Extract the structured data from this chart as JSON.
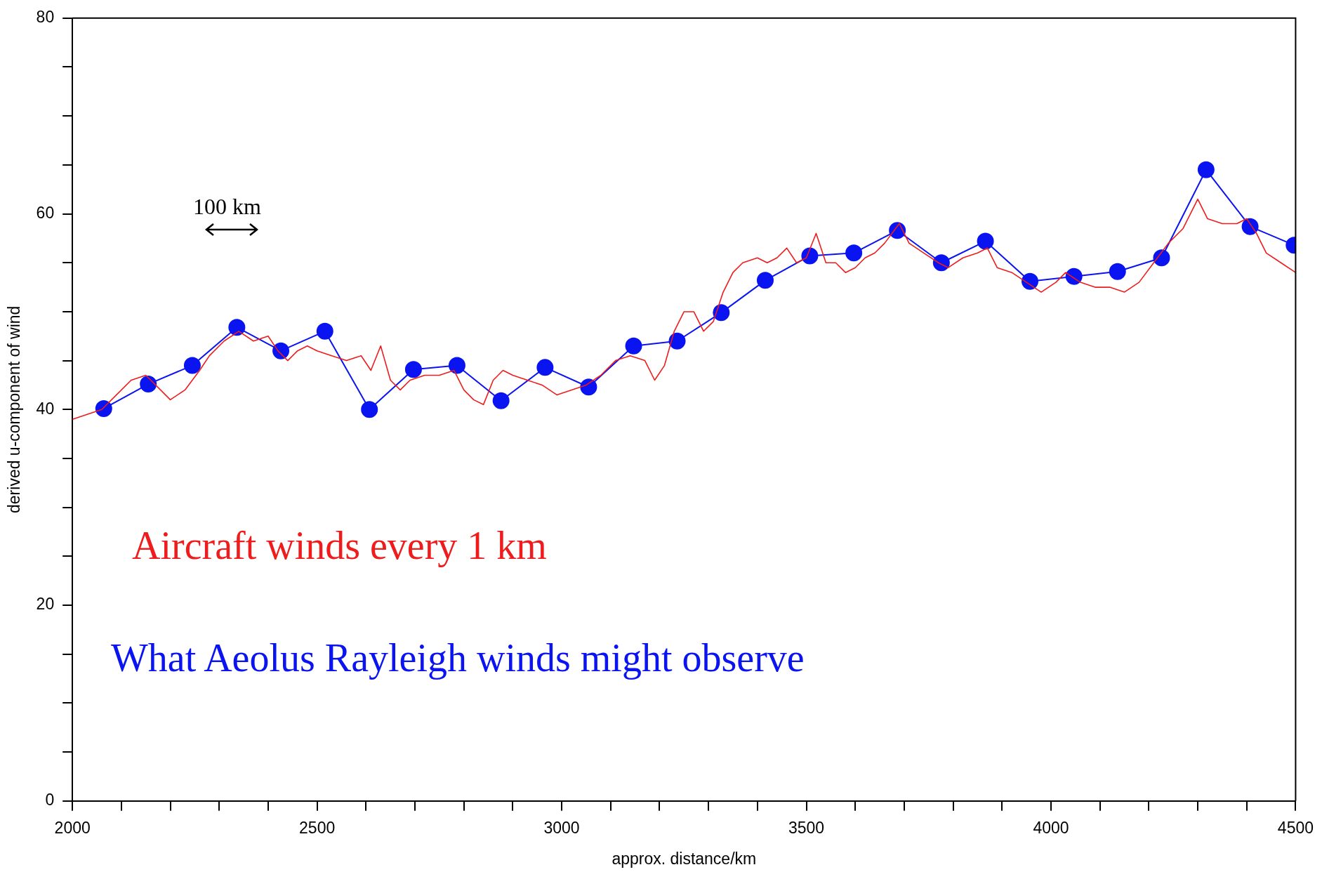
{
  "chart_data": {
    "type": "line",
    "xlabel": "approx. distance/km",
    "ylabel": "derived u-component of wind",
    "xlim": [
      2000,
      4500
    ],
    "ylim": [
      0,
      80
    ],
    "xticks": [
      2000,
      {
        "value": 2100,
        "label": null
      },
      {
        "value": 2200,
        "label": null
      },
      {
        "value": 2300,
        "label": null
      },
      {
        "value": 2400,
        "label": null
      },
      2500,
      {
        "value": 2600,
        "label": null
      },
      {
        "value": 2700,
        "label": null
      },
      {
        "value": 2800,
        "label": null
      },
      {
        "value": 2900,
        "label": null
      },
      3000,
      {
        "value": 3100,
        "label": null
      },
      {
        "value": 3200,
        "label": null
      },
      {
        "value": 3300,
        "label": null
      },
      {
        "value": 3400,
        "label": null
      },
      3500,
      {
        "value": 3600,
        "label": null
      },
      {
        "value": 3700,
        "label": null
      },
      {
        "value": 3800,
        "label": null
      },
      {
        "value": 3900,
        "label": null
      },
      4000,
      {
        "value": 4100,
        "label": null
      },
      {
        "value": 4200,
        "label": null
      },
      {
        "value": 4300,
        "label": null
      },
      {
        "value": 4400,
        "label": null
      },
      4500
    ],
    "yticks": [
      0,
      {
        "value": 5,
        "label": null
      },
      {
        "value": 10,
        "label": null
      },
      {
        "value": 15,
        "label": null
      },
      20,
      {
        "value": 25,
        "label": null
      },
      {
        "value": 30,
        "label": null
      },
      {
        "value": 35,
        "label": null
      },
      40,
      {
        "value": 45,
        "label": null
      },
      {
        "value": 50,
        "label": null
      },
      {
        "value": 55,
        "label": null
      },
      60,
      {
        "value": 65,
        "label": null
      },
      {
        "value": 70,
        "label": null
      },
      {
        "value": 75,
        "label": null
      },
      80
    ],
    "annotations": [
      "100 km"
    ],
    "series": [
      {
        "name": "Aircraft winds every 1 km",
        "color": "#ee1c1c",
        "marker": "none",
        "x": [
          2000,
          2030,
          2060,
          2090,
          2120,
          2150,
          2180,
          2200,
          2230,
          2260,
          2280,
          2310,
          2340,
          2370,
          2400,
          2420,
          2440,
          2460,
          2480,
          2500,
          2530,
          2560,
          2590,
          2610,
          2630,
          2650,
          2670,
          2690,
          2720,
          2750,
          2780,
          2800,
          2820,
          2840,
          2860,
          2880,
          2900,
          2930,
          2960,
          2990,
          3020,
          3050,
          3080,
          3110,
          3140,
          3170,
          3190,
          3210,
          3230,
          3250,
          3270,
          3290,
          3310,
          3330,
          3350,
          3370,
          3400,
          3420,
          3440,
          3460,
          3480,
          3500,
          3520,
          3540,
          3560,
          3580,
          3600,
          3620,
          3640,
          3660,
          3690,
          3710,
          3740,
          3770,
          3790,
          3820,
          3850,
          3870,
          3890,
          3920,
          3950,
          3980,
          4010,
          4030,
          4060,
          4090,
          4120,
          4150,
          4180,
          4210,
          4240,
          4270,
          4300,
          4320,
          4350,
          4380,
          4400,
          4420,
          4440,
          4470,
          4500
        ],
        "values": [
          39,
          39.5,
          40,
          41.5,
          43,
          43.5,
          42,
          41,
          42,
          44,
          45.5,
          47,
          48,
          47,
          47.5,
          46,
          45,
          46,
          46.5,
          46,
          45.5,
          45,
          45.5,
          44,
          46.5,
          43,
          42,
          43,
          43.5,
          43.5,
          44,
          42,
          41,
          40.5,
          43,
          44,
          43.5,
          43,
          42.5,
          41.5,
          42,
          42.5,
          43.5,
          45,
          45.5,
          45,
          43,
          44.5,
          48,
          50,
          50,
          48,
          49,
          52,
          54,
          55,
          55.5,
          55,
          55.5,
          56.5,
          55,
          55.5,
          58,
          55,
          55,
          54,
          54.5,
          55.5,
          56,
          57,
          59,
          57,
          56,
          55,
          54.5,
          55.5,
          56,
          56.5,
          54.5,
          54,
          53,
          52,
          53,
          54,
          53,
          52.5,
          52.5,
          52,
          53,
          55,
          57,
          58.5,
          61.5,
          59.5,
          59,
          59,
          59.5,
          58,
          56,
          55,
          54
        ]
      },
      {
        "name": "What Aeolus Rayleigh winds might observe",
        "color": "#0a14f0",
        "marker": "circle",
        "x": [
          2064,
          2155,
          2245,
          2336,
          2426,
          2516,
          2607,
          2697,
          2786,
          2876,
          2966,
          3055,
          3147,
          3236,
          3326,
          3416,
          3507,
          3597,
          3686,
          3776,
          3866,
          3957,
          4047,
          4136,
          4226,
          4317,
          4407,
          4497
        ],
        "values": [
          40.1,
          42.6,
          44.5,
          48.4,
          46,
          48,
          40,
          44.1,
          44.5,
          40.9,
          44.3,
          42.3,
          46.5,
          47,
          49.9,
          53.2,
          55.7,
          56,
          58.3,
          55,
          57.2,
          53.1,
          53.6,
          54.1,
          55.5,
          64.5,
          58.7,
          56.8
        ]
      }
    ]
  }
}
